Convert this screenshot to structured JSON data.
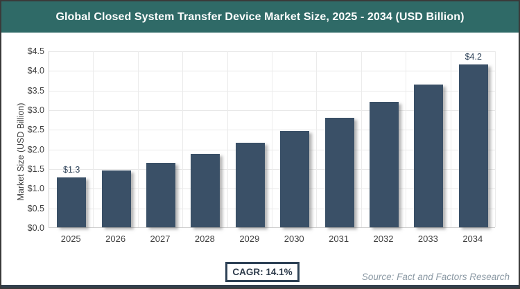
{
  "header": {
    "title": "Global Closed System Transfer Device Market Size, 2025 - 2034 (USD Billion)",
    "background_color": "#2f6a67",
    "text_color": "#ffffff"
  },
  "chart_data": {
    "type": "bar",
    "categories": [
      "2025",
      "2026",
      "2027",
      "2028",
      "2029",
      "2030",
      "2031",
      "2032",
      "2033",
      "2034"
    ],
    "values": [
      1.27,
      1.45,
      1.65,
      1.88,
      2.15,
      2.45,
      2.79,
      3.19,
      3.63,
      4.15
    ],
    "value_labels": [
      "$1.3",
      "",
      "",
      "",
      "",
      "",
      "",
      "",
      "",
      "$4.2"
    ],
    "title": "Global Closed System Transfer Device Market Size, 2025 - 2034 (USD Billion)",
    "xlabel": "",
    "ylabel": "Market Size (USD Billion)",
    "ylim": [
      0,
      4.5
    ],
    "ytick_step": 0.5,
    "ytick_labels": [
      "$0.0",
      "$0.5",
      "$1.0",
      "$1.5",
      "$2.0",
      "$2.5",
      "$3.0",
      "$3.5",
      "$4.0",
      "$4.5"
    ],
    "grid": true,
    "legend": false,
    "bar_color": "#3a5067"
  },
  "footer": {
    "cagr_label": "CAGR: 14.1%",
    "source": "Source: Fact and Factors Research"
  }
}
